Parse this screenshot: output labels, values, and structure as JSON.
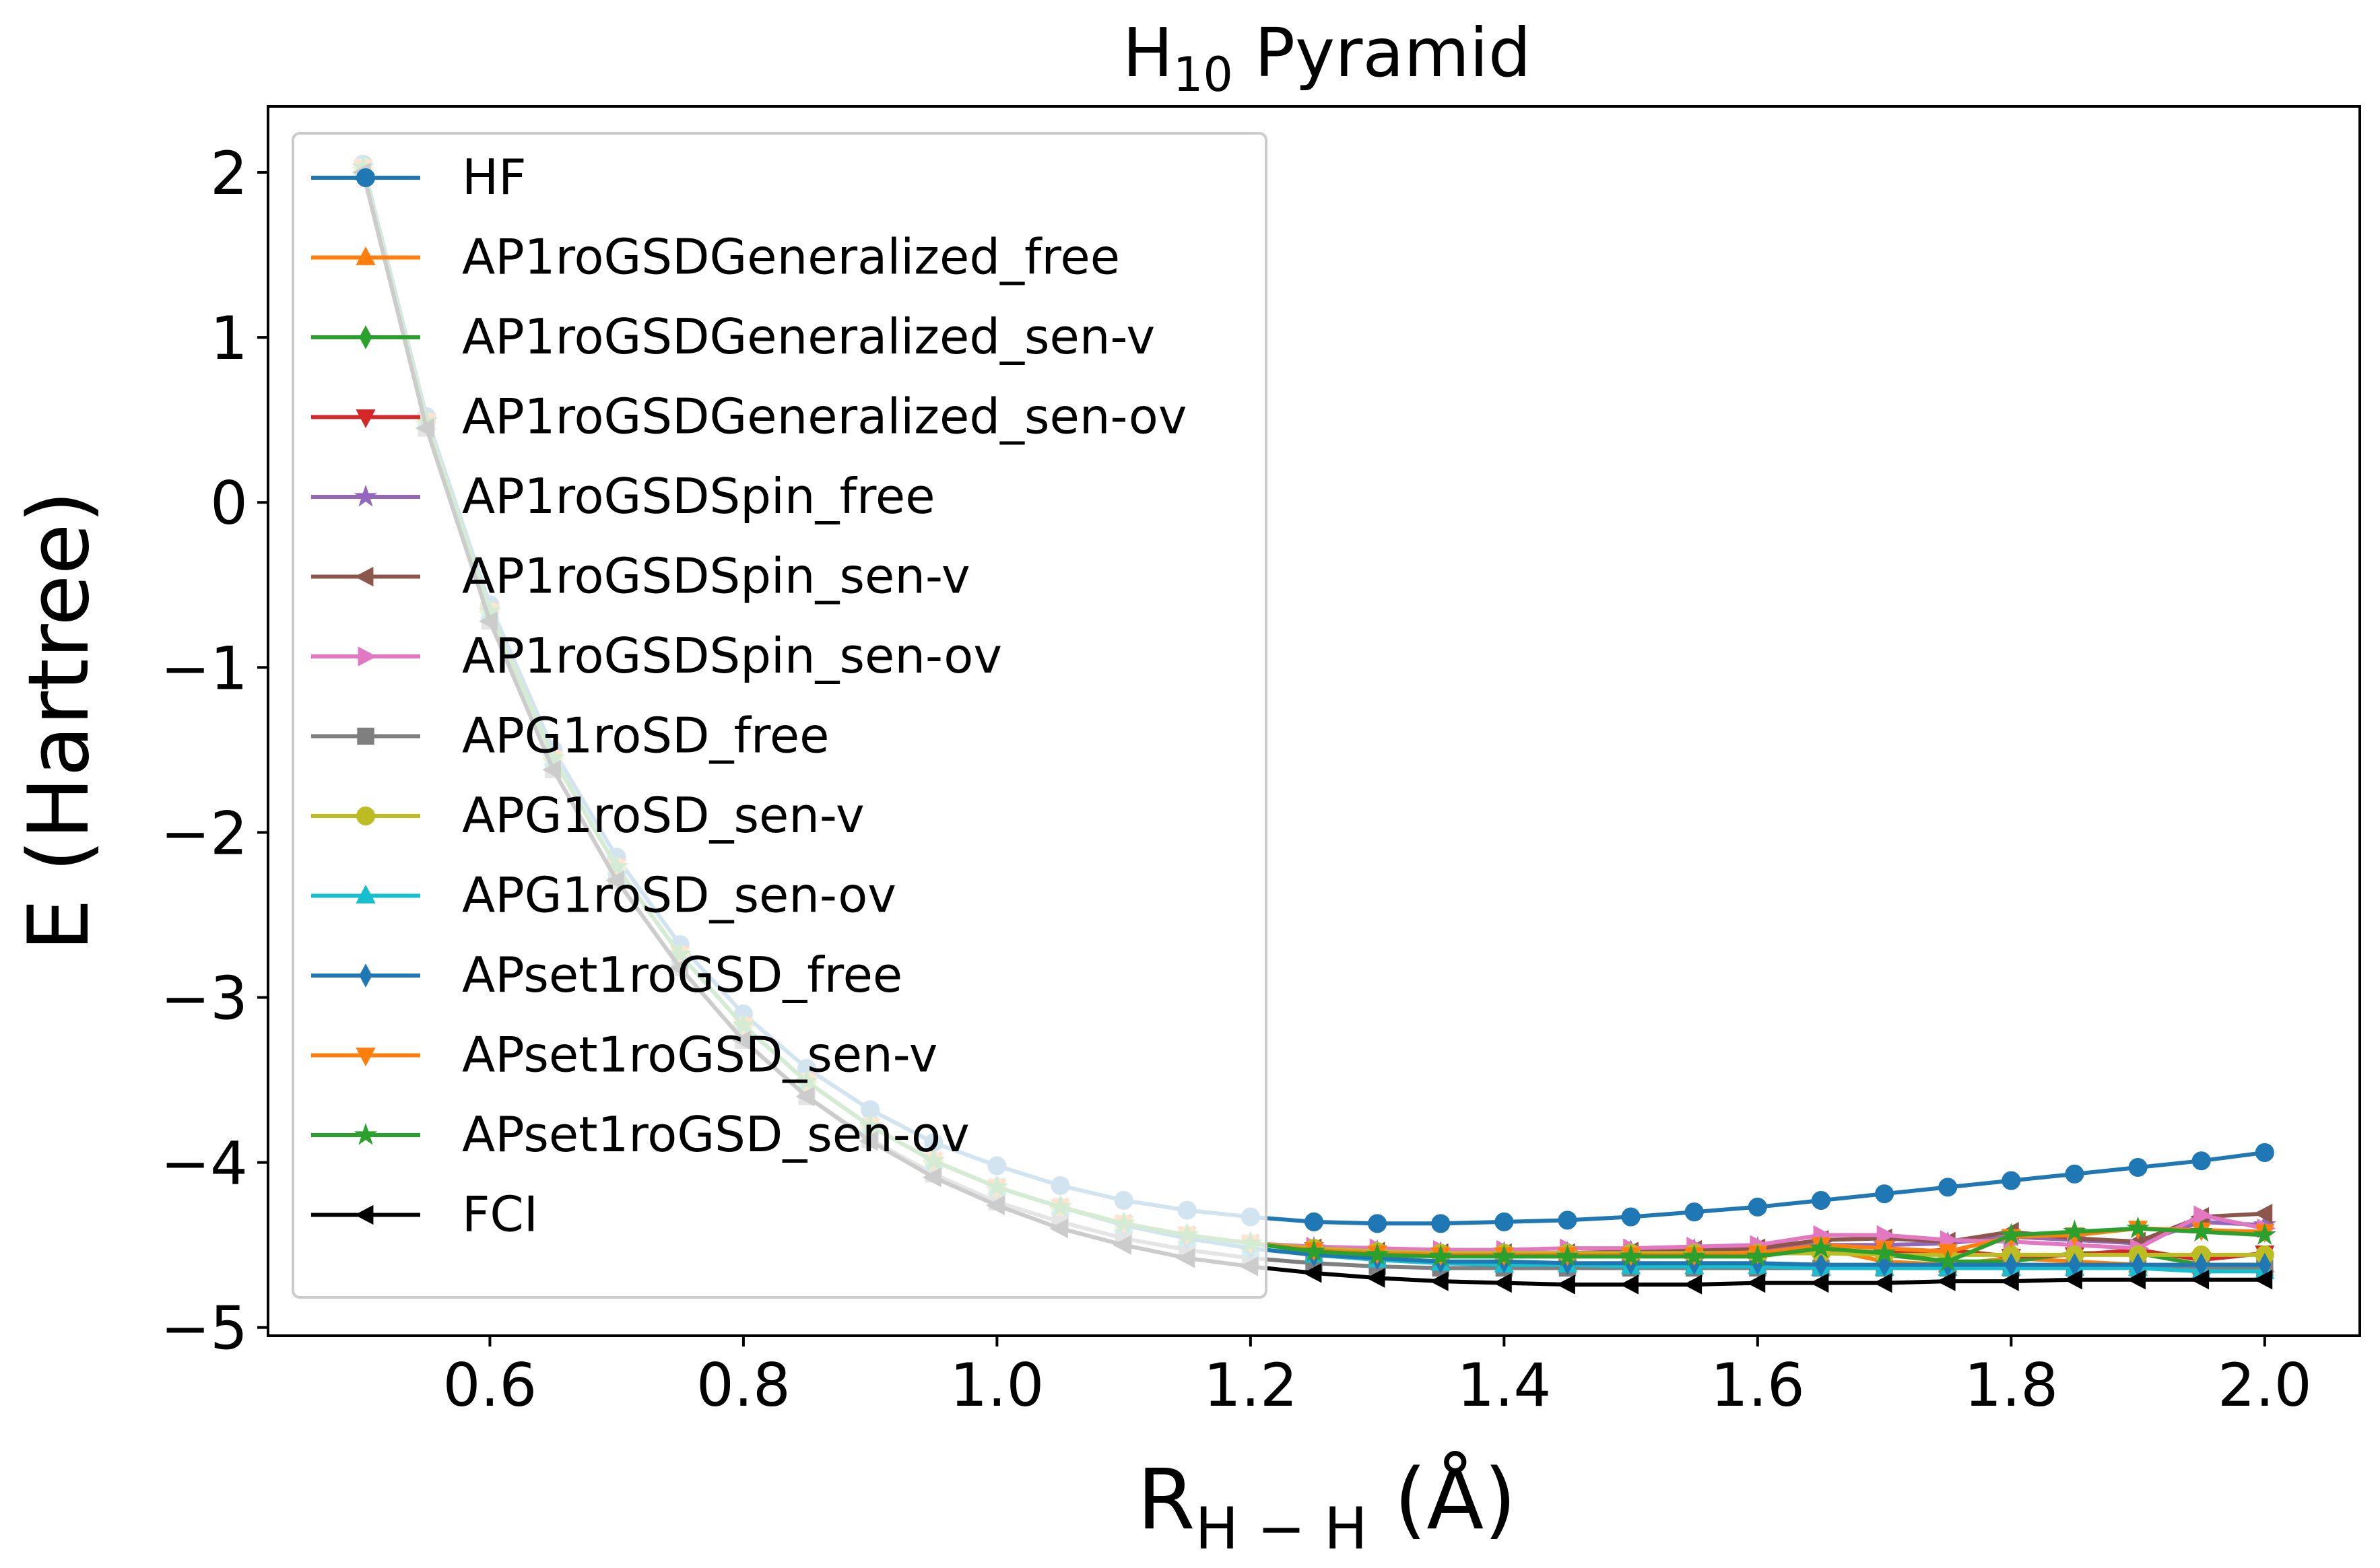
{
  "chart_data": {
    "type": "line",
    "title": {
      "main": "H",
      "sub": "10",
      "rest": " Pyramid"
    },
    "xlabel": {
      "main": "R",
      "sub": "H − H",
      "rest": " (Å)"
    },
    "ylabel": "E (Hartree)",
    "xlim": [
      0.425,
      2.075
    ],
    "ylim": [
      -5.05,
      2.4
    ],
    "xticks": [
      0.6,
      0.8,
      1.0,
      1.2,
      1.4,
      1.6,
      1.8,
      2.0
    ],
    "xtick_labels": [
      "0.6",
      "0.8",
      "1.0",
      "1.2",
      "1.4",
      "1.6",
      "1.8",
      "2.0"
    ],
    "yticks": [
      2,
      1,
      0,
      -1,
      -2,
      -3,
      -4,
      -5
    ],
    "ytick_labels": [
      "2",
      "1",
      "0",
      "−1",
      "−2",
      "−3",
      "−4",
      "−5"
    ],
    "grid": false,
    "legend_position": "top-left",
    "x": [
      0.5,
      0.55,
      0.6,
      0.65,
      0.7,
      0.75,
      0.8,
      0.85,
      0.9,
      0.95,
      1.0,
      1.05,
      1.1,
      1.15,
      1.2,
      1.25,
      1.3,
      1.35,
      1.4,
      1.45,
      1.5,
      1.55,
      1.6,
      1.65,
      1.7,
      1.75,
      1.8,
      1.85,
      1.9,
      1.95,
      2.0
    ],
    "series": [
      {
        "name": "HF",
        "color": "#1f77b4",
        "marker": "circle",
        "values": [
          2.05,
          0.52,
          -0.62,
          -1.5,
          -2.15,
          -2.68,
          -3.1,
          -3.43,
          -3.68,
          -3.88,
          -4.02,
          -4.14,
          -4.23,
          -4.29,
          -4.33,
          -4.36,
          -4.37,
          -4.37,
          -4.36,
          -4.35,
          -4.33,
          -4.3,
          -4.27,
          -4.23,
          -4.19,
          -4.15,
          -4.11,
          -4.07,
          -4.03,
          -3.99,
          -3.94
        ]
      },
      {
        "name": "AP1roGSDGeneralized_free",
        "color": "#ff7f0e",
        "marker": "triangle-up",
        "values": [
          2.03,
          0.49,
          -0.66,
          -1.55,
          -2.21,
          -2.74,
          -3.17,
          -3.51,
          -3.78,
          -3.99,
          -4.15,
          -4.27,
          -4.37,
          -4.44,
          -4.49,
          -4.52,
          -4.54,
          -4.55,
          -4.55,
          -4.55,
          -4.55,
          -4.54,
          -4.54,
          -4.52,
          -4.6,
          -4.62,
          -4.58,
          -4.6,
          -4.62,
          -4.63,
          -4.62
        ]
      },
      {
        "name": "AP1roGSDGeneralized_sen-v",
        "color": "#2ca02c",
        "marker": "thin-diamond",
        "values": [
          2.03,
          0.49,
          -0.66,
          -1.55,
          -2.21,
          -2.74,
          -3.17,
          -3.51,
          -3.78,
          -3.99,
          -4.15,
          -4.27,
          -4.37,
          -4.44,
          -4.49,
          -4.53,
          -4.55,
          -4.56,
          -4.56,
          -4.56,
          -4.56,
          -4.56,
          -4.55,
          -4.53,
          -4.56,
          -4.6,
          -4.6,
          -4.55,
          -4.55,
          -4.62,
          -4.62
        ]
      },
      {
        "name": "AP1roGSDGeneralized_sen-ov",
        "color": "#d62728",
        "marker": "triangle-down",
        "values": [
          2.03,
          0.49,
          -0.66,
          -1.55,
          -2.21,
          -2.74,
          -3.17,
          -3.51,
          -3.78,
          -3.99,
          -4.15,
          -4.27,
          -4.37,
          -4.44,
          -4.49,
          -4.53,
          -4.55,
          -4.56,
          -4.56,
          -4.56,
          -4.56,
          -4.55,
          -4.55,
          -4.55,
          -4.55,
          -4.53,
          -4.57,
          -4.56,
          -4.53,
          -4.59,
          -4.55
        ]
      },
      {
        "name": "AP1roGSDSpin_free",
        "color": "#9467bd",
        "marker": "star",
        "values": [
          2.03,
          0.49,
          -0.66,
          -1.55,
          -2.21,
          -2.74,
          -3.17,
          -3.51,
          -3.78,
          -3.99,
          -4.15,
          -4.27,
          -4.37,
          -4.44,
          -4.49,
          -4.52,
          -4.54,
          -4.55,
          -4.55,
          -4.55,
          -4.54,
          -4.53,
          -4.52,
          -4.5,
          -4.5,
          -4.49,
          -4.45,
          -4.47,
          -4.49,
          -4.36,
          -4.38
        ]
      },
      {
        "name": "AP1roGSDSpin_sen-v",
        "color": "#8c564b",
        "marker": "triangle-left",
        "values": [
          2.03,
          0.49,
          -0.66,
          -1.55,
          -2.21,
          -2.74,
          -3.17,
          -3.51,
          -3.78,
          -3.99,
          -4.15,
          -4.27,
          -4.37,
          -4.44,
          -4.49,
          -4.52,
          -4.54,
          -4.55,
          -4.55,
          -4.55,
          -4.54,
          -4.53,
          -4.52,
          -4.47,
          -4.46,
          -4.48,
          -4.42,
          -4.46,
          -4.48,
          -4.33,
          -4.31
        ]
      },
      {
        "name": "AP1roGSDSpin_sen-ov",
        "color": "#e377c2",
        "marker": "triangle-right",
        "values": [
          2.03,
          0.49,
          -0.66,
          -1.55,
          -2.21,
          -2.74,
          -3.17,
          -3.51,
          -3.78,
          -3.99,
          -4.15,
          -4.27,
          -4.37,
          -4.44,
          -4.49,
          -4.51,
          -4.52,
          -4.53,
          -4.53,
          -4.52,
          -4.52,
          -4.51,
          -4.5,
          -4.44,
          -4.44,
          -4.47,
          -4.48,
          -4.5,
          -4.52,
          -4.32,
          -4.4
        ]
      },
      {
        "name": "APG1roSD_free",
        "color": "#7f7f7f",
        "marker": "square",
        "values": [
          2.0,
          0.45,
          -0.72,
          -1.62,
          -2.29,
          -2.82,
          -3.26,
          -3.6,
          -3.86,
          -4.07,
          -4.24,
          -4.36,
          -4.46,
          -4.53,
          -4.58,
          -4.61,
          -4.63,
          -4.64,
          -4.64,
          -4.64,
          -4.64,
          -4.64,
          -4.64,
          -4.64,
          -4.64,
          -4.64,
          -4.64,
          -4.64,
          -4.64,
          -4.64,
          -4.64
        ]
      },
      {
        "name": "APG1roSD_sen-v",
        "color": "#bcbd22",
        "marker": "circle",
        "values": [
          2.03,
          0.49,
          -0.66,
          -1.55,
          -2.21,
          -2.74,
          -3.17,
          -3.51,
          -3.78,
          -3.99,
          -4.15,
          -4.27,
          -4.37,
          -4.44,
          -4.49,
          -4.52,
          -4.54,
          -4.55,
          -4.55,
          -4.55,
          -4.55,
          -4.55,
          -4.55,
          -4.55,
          -4.56,
          -4.56,
          -4.56,
          -4.56,
          -4.56,
          -4.56,
          -4.56
        ]
      },
      {
        "name": "APG1roSD_sen-ov",
        "color": "#17becf",
        "marker": "triangle-up",
        "values": [
          2.03,
          0.49,
          -0.66,
          -1.55,
          -2.21,
          -2.74,
          -3.17,
          -3.51,
          -3.78,
          -3.99,
          -4.15,
          -4.27,
          -4.38,
          -4.46,
          -4.52,
          -4.56,
          -4.59,
          -4.61,
          -4.62,
          -4.62,
          -4.63,
          -4.63,
          -4.63,
          -4.64,
          -4.64,
          -4.64,
          -4.64,
          -4.64,
          -4.64,
          -4.66,
          -4.66
        ]
      },
      {
        "name": "APset1roGSD_free",
        "color": "#1f77b4",
        "marker": "thin-diamond",
        "values": [
          2.03,
          0.49,
          -0.66,
          -1.55,
          -2.21,
          -2.74,
          -3.17,
          -3.51,
          -3.78,
          -3.99,
          -4.15,
          -4.27,
          -4.38,
          -4.46,
          -4.52,
          -4.56,
          -4.58,
          -4.6,
          -4.6,
          -4.61,
          -4.61,
          -4.61,
          -4.61,
          -4.62,
          -4.62,
          -4.62,
          -4.62,
          -4.62,
          -4.62,
          -4.62,
          -4.62
        ]
      },
      {
        "name": "APset1roGSD_sen-v",
        "color": "#ff7f0e",
        "marker": "triangle-down",
        "values": [
          2.03,
          0.49,
          -0.66,
          -1.55,
          -2.21,
          -2.74,
          -3.17,
          -3.51,
          -3.78,
          -3.99,
          -4.15,
          -4.27,
          -4.37,
          -4.44,
          -4.49,
          -4.53,
          -4.55,
          -4.56,
          -4.56,
          -4.56,
          -4.56,
          -4.56,
          -4.55,
          -4.5,
          -4.52,
          -4.54,
          -4.45,
          -4.44,
          -4.4,
          -4.41,
          -4.42
        ]
      },
      {
        "name": "APset1roGSD_sen-ov",
        "color": "#2ca02c",
        "marker": "star",
        "values": [
          2.03,
          0.49,
          -0.66,
          -1.55,
          -2.21,
          -2.74,
          -3.17,
          -3.51,
          -3.78,
          -3.99,
          -4.15,
          -4.27,
          -4.37,
          -4.44,
          -4.49,
          -4.54,
          -4.56,
          -4.57,
          -4.57,
          -4.57,
          -4.57,
          -4.57,
          -4.57,
          -4.52,
          -4.55,
          -4.6,
          -4.44,
          -4.42,
          -4.4,
          -4.42,
          -4.44
        ]
      },
      {
        "name": "FCI",
        "color": "#000000",
        "marker": "triangle-left",
        "values": [
          2.0,
          0.45,
          -0.72,
          -1.62,
          -2.29,
          -2.82,
          -3.26,
          -3.6,
          -3.87,
          -4.09,
          -4.26,
          -4.4,
          -4.5,
          -4.58,
          -4.63,
          -4.67,
          -4.7,
          -4.72,
          -4.73,
          -4.74,
          -4.74,
          -4.74,
          -4.73,
          -4.73,
          -4.73,
          -4.72,
          -4.72,
          -4.71,
          -4.71,
          -4.71,
          -4.71
        ]
      }
    ]
  }
}
